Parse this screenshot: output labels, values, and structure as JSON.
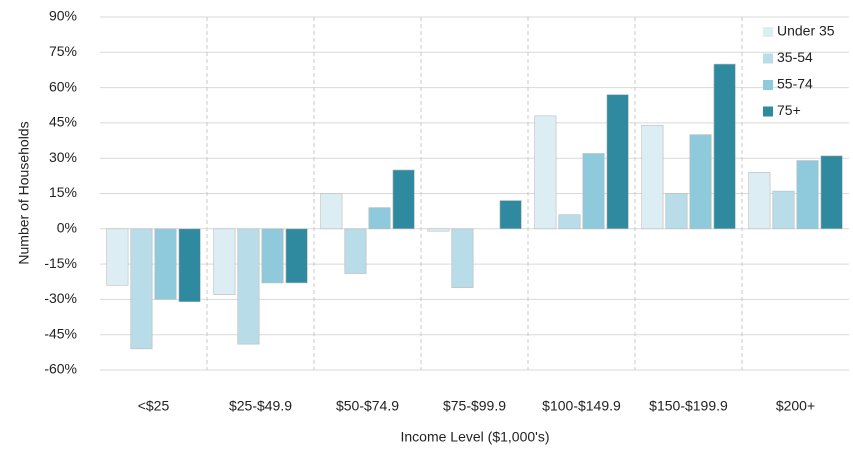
{
  "chart_data": {
    "type": "bar",
    "x_label": "Income Level ($1,000's)",
    "y_label": "Number of Households",
    "categories": [
      "<$25",
      "$25-$49.9",
      "$50-$74.9",
      "$75-$99.9",
      "$100-$149.9",
      "$150-$199.9",
      "$200+"
    ],
    "series": [
      {
        "name": "Under 35",
        "color": "#dcedf3",
        "values": [
          -24,
          -28,
          15,
          -1,
          48,
          44,
          24
        ]
      },
      {
        "name": "35-54",
        "color": "#b8dce8",
        "values": [
          -51,
          -49,
          -19,
          -25,
          6,
          15,
          16
        ]
      },
      {
        "name": "55-74",
        "color": "#8ecadb",
        "values": [
          -30,
          -23,
          9,
          0,
          32,
          40,
          29
        ]
      },
      {
        "name": "75+",
        "color": "#2f8aa0",
        "values": [
          -31,
          -23,
          25,
          12,
          57,
          70,
          31
        ]
      }
    ],
    "ylim": [
      -60,
      90
    ],
    "yticks": [
      {
        "value": -60,
        "label": "-60%"
      },
      {
        "value": -45,
        "label": "-45%"
      },
      {
        "value": -30,
        "label": "-30%"
      },
      {
        "value": -15,
        "label": "-15%"
      },
      {
        "value": 0,
        "label": "0%"
      },
      {
        "value": 15,
        "label": "15%"
      },
      {
        "value": 30,
        "label": "30%"
      },
      {
        "value": 45,
        "label": "45%"
      },
      {
        "value": 60,
        "label": "60%"
      },
      {
        "value": 75,
        "label": "75%"
      },
      {
        "value": 90,
        "label": "90%"
      }
    ],
    "grid": true,
    "legend": "top-right"
  }
}
